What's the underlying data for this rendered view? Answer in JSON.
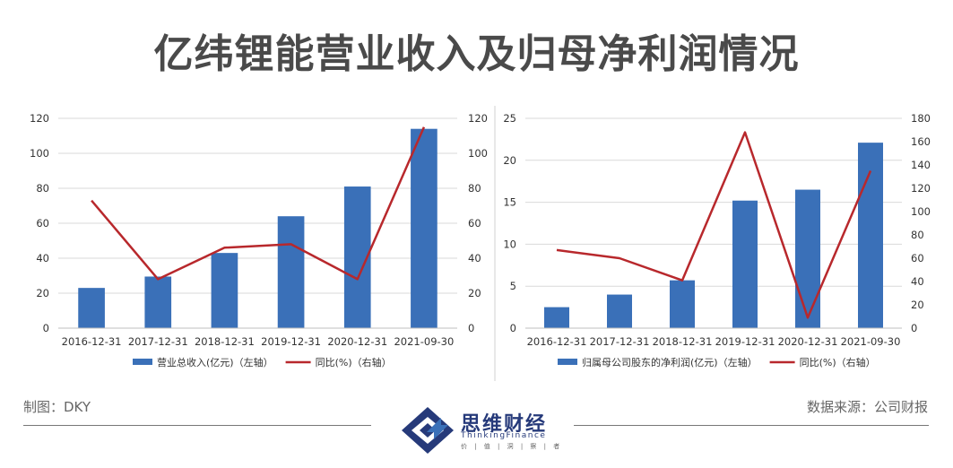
{
  "title": "亿纬锂能营业收入及归母净利润情况",
  "footer": {
    "made_by": "制图：DKY",
    "source": "数据来源：公司财报"
  },
  "brand": {
    "cn": "思维财经",
    "en": "ThinkingFinance",
    "sub": "价 | 值 | 洞 | 察 | 者"
  },
  "colors": {
    "bar": "#3a70b8",
    "line": "#b8282c",
    "grid": "#d9d9d9"
  },
  "chart_data": [
    {
      "type": "bar",
      "categories": [
        "2016-12-31",
        "2017-12-31",
        "2018-12-31",
        "2019-12-31",
        "2020-12-31",
        "2021-09-30"
      ],
      "series": [
        {
          "name": "营业总收入(亿元)（左轴）",
          "type": "bar",
          "axis": "left",
          "values": [
            23,
            29.5,
            43,
            64,
            81,
            114
          ]
        },
        {
          "name": "同比(%)（右轴）",
          "type": "line",
          "axis": "right",
          "values": [
            73,
            28,
            46,
            48,
            28,
            115
          ]
        }
      ],
      "y_left": {
        "min": 0,
        "max": 120,
        "ticks": [
          "0",
          "20",
          "40",
          "60",
          "80",
          "100",
          "120"
        ]
      },
      "y_right": {
        "min": 0,
        "max": 120,
        "ticks": [
          "0",
          "20",
          "40",
          "60",
          "80",
          "100",
          "120"
        ]
      },
      "grid": true,
      "legend": "bottom"
    },
    {
      "type": "bar",
      "categories": [
        "2016-12-31",
        "2017-12-31",
        "2018-12-31",
        "2019-12-31",
        "2020-12-31",
        "2021-09-30"
      ],
      "series": [
        {
          "name": "归属母公司股东的净利润(亿元)（左轴）",
          "type": "bar",
          "axis": "left",
          "values": [
            2.5,
            4,
            5.7,
            15.2,
            16.5,
            22.1
          ]
        },
        {
          "name": "同比(%)（右轴）",
          "type": "line",
          "axis": "right",
          "values": [
            67,
            60,
            41,
            168,
            9,
            135
          ]
        }
      ],
      "y_left": {
        "min": 0,
        "max": 25,
        "ticks": [
          "0",
          "5",
          "10",
          "15",
          "20",
          "25"
        ]
      },
      "y_right": {
        "min": 0,
        "max": 180,
        "ticks": [
          "0",
          "20",
          "40",
          "60",
          "80",
          "100",
          "120",
          "140",
          "160",
          "180"
        ]
      },
      "grid": true,
      "legend": "bottom"
    }
  ]
}
